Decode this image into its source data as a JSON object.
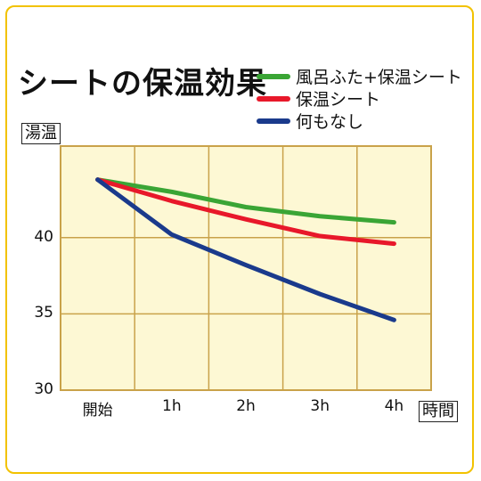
{
  "chart_data": {
    "type": "line",
    "title": "シートの保温効果",
    "ylabel": "湯温",
    "xlabel": "時間",
    "categories": [
      "開始",
      "1h",
      "2h",
      "3h",
      "4h"
    ],
    "ylim": [
      30,
      46
    ],
    "yticks": [
      30,
      35,
      40
    ],
    "grid": true,
    "legend_position": "top-right",
    "series": [
      {
        "name": "風呂ふた+保温シート",
        "color": "#3aa535",
        "values": [
          43.8,
          43.0,
          42.0,
          41.4,
          41.0
        ]
      },
      {
        "name": "保温シート",
        "color": "#e8182a",
        "values": [
          43.8,
          42.4,
          41.2,
          40.1,
          39.6
        ]
      },
      {
        "name": "何もなし",
        "color": "#1a3a8c",
        "values": [
          43.8,
          40.2,
          38.2,
          36.3,
          34.6
        ]
      }
    ],
    "plot_background": "#fdf8d4",
    "grid_color": "#c9a24a",
    "frame_color": "#f2c200"
  }
}
